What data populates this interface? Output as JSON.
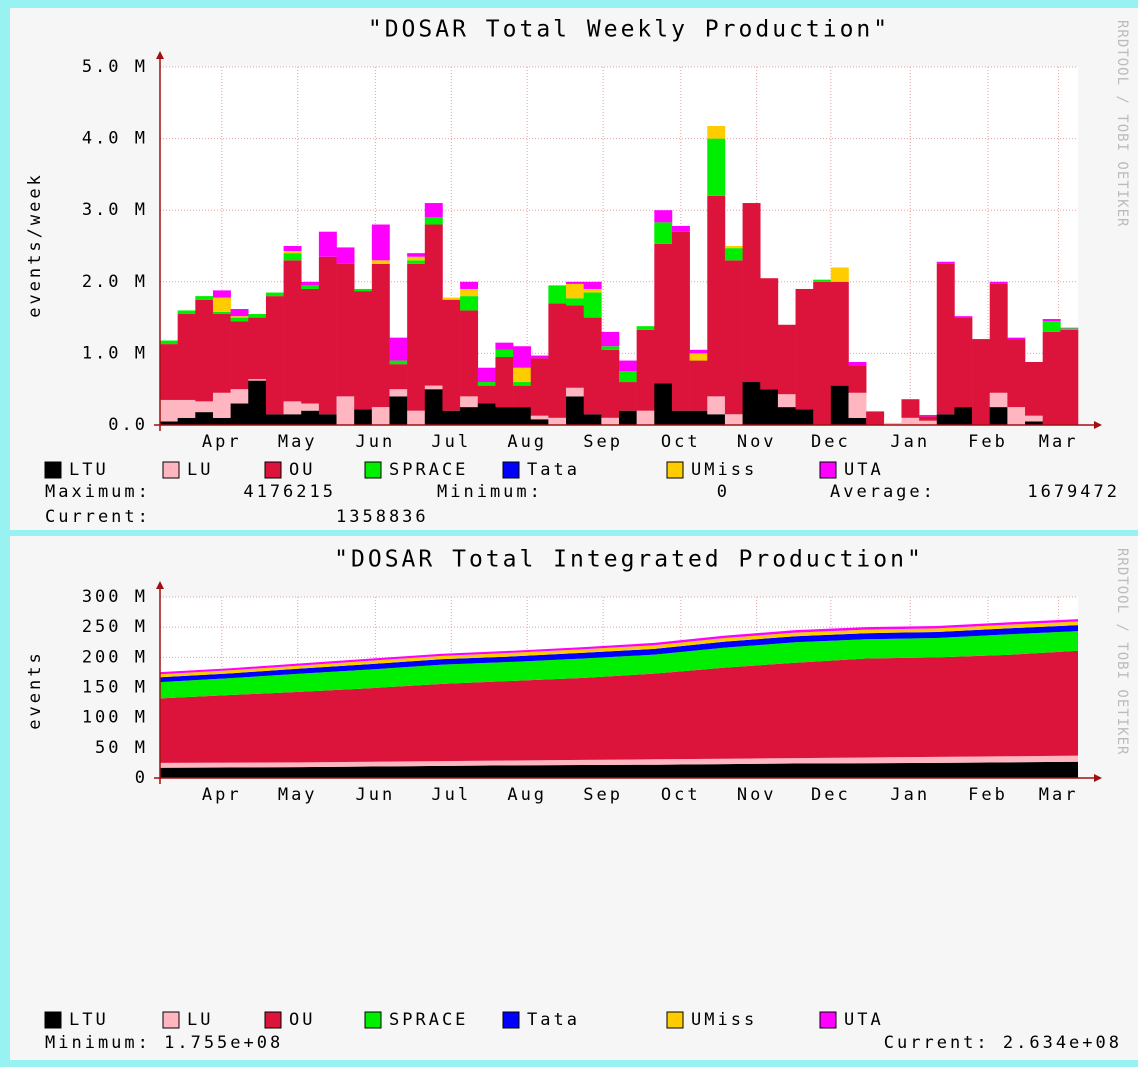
{
  "watermark": "RRDTOOL / TOBI OETIKER",
  "chart_data": [
    {
      "type": "bar",
      "stacked": true,
      "title": "\"DOSAR Total Weekly Production\"",
      "y_label": "events/week",
      "categories": [
        null,
        null,
        null,
        null,
        null,
        null,
        null,
        null,
        null,
        null,
        null,
        null,
        null,
        null,
        null,
        null,
        null,
        null,
        null,
        null,
        null,
        null,
        null,
        null,
        null,
        null,
        null,
        null,
        null,
        null,
        null,
        null,
        null,
        null,
        null,
        null,
        null,
        null,
        null,
        null,
        null,
        null,
        null,
        null,
        null,
        null,
        null,
        null,
        null,
        null,
        null,
        null
      ],
      "xlim": [
        0,
        52
      ],
      "xticks": [
        {
          "value": 3.5,
          "label": "Apr"
        },
        {
          "value": 7.8,
          "label": "May"
        },
        {
          "value": 12.2,
          "label": "Jun"
        },
        {
          "value": 16.5,
          "label": "Jul"
        },
        {
          "value": 20.8,
          "label": "Aug"
        },
        {
          "value": 25.1,
          "label": "Sep"
        },
        {
          "value": 29.5,
          "label": "Oct"
        },
        {
          "value": 33.8,
          "label": "Nov"
        },
        {
          "value": 38.0,
          "label": "Dec"
        },
        {
          "value": 42.5,
          "label": "Jan"
        },
        {
          "value": 46.9,
          "label": "Feb"
        },
        {
          "value": 50.9,
          "label": "Mar"
        }
      ],
      "ylim": [
        0,
        5000000
      ],
      "yticks": [
        {
          "value": 0,
          "label": "0.0"
        },
        {
          "value": 1000000,
          "label": "1.0 M"
        },
        {
          "value": 2000000,
          "label": "2.0 M"
        },
        {
          "value": 3000000,
          "label": "3.0 M"
        },
        {
          "value": 4000000,
          "label": "4.0 M"
        },
        {
          "value": 5000000,
          "label": "5.0 M"
        }
      ],
      "grid": true,
      "series": [
        {
          "name": "LTU",
          "color": "#000000",
          "values": [
            50000.0,
            100000.0,
            180000.0,
            100000.0,
            300000.0,
            620000.0,
            150000.0,
            150000.0,
            200000.0,
            150000.0,
            0,
            220000.0,
            0,
            400000.0,
            0,
            500000.0,
            200000.0,
            250000.0,
            300000.0,
            250000.0,
            250000.0,
            80000.0,
            0,
            400000.0,
            150000.0,
            0,
            200000.0,
            0,
            580000.0,
            200000.0,
            200000.0,
            150000.0,
            0,
            600000.0,
            500000.0,
            250000.0,
            220000.0,
            0,
            550000.0,
            100000.0,
            0,
            0,
            0,
            0,
            150000.0,
            250000.0,
            0,
            250000.0,
            0,
            50000.0,
            0,
            0
          ]
        },
        {
          "name": "LU",
          "color": "#ffb6c1",
          "values": [
            300000.0,
            250000.0,
            150000.0,
            350000.0,
            200000.0,
            20000.0,
            0,
            180000.0,
            100000.0,
            0,
            400000.0,
            0,
            250000.0,
            100000.0,
            200000.0,
            50000.0,
            0,
            150000.0,
            0,
            0,
            0,
            50000.0,
            100000.0,
            120000.0,
            0,
            100000.0,
            0,
            200000.0,
            0,
            0,
            0,
            250000.0,
            150000.0,
            0,
            0,
            180000.0,
            0,
            0,
            0,
            350000.0,
            0,
            30000.0,
            100000.0,
            60000.0,
            0,
            0,
            0,
            200000.0,
            250000.0,
            80000.0,
            0,
            0
          ]
        },
        {
          "name": "OU",
          "color": "#dc143c",
          "values": [
            780000.0,
            1200000.0,
            1420000.0,
            1100000.0,
            950000.0,
            860000.0,
            1650000.0,
            1970000.0,
            1600000.0,
            2200000.0,
            1850000.0,
            1650000.0,
            2000000.0,
            350000.0,
            2050000.0,
            2250000.0,
            1550000.0,
            1200000.0,
            250000.0,
            700000.0,
            300000.0,
            800000.0,
            1600000.0,
            1150000.0,
            1350000.0,
            950000.0,
            400000.0,
            1130000.0,
            1950000.0,
            2500000.0,
            700000.0,
            2800000.0,
            2150000.0,
            2500000.0,
            1550000.0,
            970000.0,
            1680000.0,
            2000000.0,
            1450000.0,
            380000.0,
            190000.0,
            0,
            260000.0,
            60000.0,
            2100000.0,
            1250000.0,
            1200000.0,
            1520000.0,
            950000.0,
            750000.0,
            1300000.0,
            1330000.0
          ]
        },
        {
          "name": "SPRACE",
          "color": "#00ee00",
          "values": [
            50000.0,
            50000.0,
            50000.0,
            30000.0,
            50000.0,
            50000.0,
            50000.0,
            100000.0,
            50000.0,
            0,
            0,
            30000.0,
            0,
            50000.0,
            50000.0,
            100000.0,
            0,
            200000.0,
            50000.0,
            100000.0,
            50000.0,
            0,
            250000.0,
            100000.0,
            350000.0,
            50000.0,
            150000.0,
            50000.0,
            300000.0,
            0,
            0,
            800000.0,
            170000.0,
            0,
            0,
            0,
            0,
            30000.0,
            0,
            0,
            0,
            0,
            0,
            0,
            0,
            0,
            0,
            0,
            0,
            0,
            150000.0,
            20000.0
          ]
        },
        {
          "name": "Tata",
          "color": "#0000ff",
          "values": [
            0,
            0,
            0,
            0,
            0,
            0,
            0,
            0,
            0,
            0,
            0,
            0,
            0,
            0,
            0,
            0,
            0,
            0,
            0,
            0,
            0,
            0,
            0,
            0,
            0,
            0,
            0,
            0,
            0,
            0,
            0,
            0,
            0,
            0,
            0,
            0,
            0,
            0,
            0,
            0,
            0,
            0,
            0,
            0,
            0,
            0,
            0,
            0,
            0,
            0,
            0,
            0
          ]
        },
        {
          "name": "UMiss",
          "color": "#ffcc00",
          "values": [
            0,
            0,
            0,
            200000.0,
            20000.0,
            0,
            0,
            30000.0,
            0,
            0,
            0,
            0,
            50000.0,
            0,
            50000.0,
            0,
            30000.0,
            100000.0,
            0,
            0,
            200000.0,
            0,
            0,
            200000.0,
            50000.0,
            0,
            0,
            0,
            0,
            0,
            100000.0,
            176215,
            30000.0,
            0,
            0,
            0,
            0,
            0,
            200000.0,
            0,
            0,
            0,
            0,
            0,
            0,
            0,
            0,
            0,
            0,
            0,
            0,
            0
          ]
        },
        {
          "name": "UTA",
          "color": "#ff00ff",
          "values": [
            0,
            0,
            0,
            100000.0,
            100000.0,
            0,
            0,
            70000.0,
            50000.0,
            350000.0,
            230000.0,
            0,
            500000.0,
            320000.0,
            50000.0,
            200000.0,
            0,
            100000.0,
            200000.0,
            100000.0,
            300000.0,
            40000.0,
            0,
            30000.0,
            100000.0,
            200000.0,
            150000.0,
            0,
            170000.0,
            80000.0,
            50000.0,
            0,
            0,
            0,
            0,
            0,
            0,
            0,
            0,
            50000.0,
            0,
            0,
            0,
            20000.0,
            30000.0,
            20000.0,
            0,
            30000.0,
            20000.0,
            0,
            30000.0,
            8836
          ]
        }
      ],
      "stats": [
        "Maximum:",
        "4176215",
        "Minimum:",
        "0",
        "Average:",
        "1679472",
        "Current:",
        "1358836"
      ]
    },
    {
      "type": "area",
      "stacked": true,
      "title": "\"DOSAR Total Integrated Production\"",
      "y_label": "events",
      "x": [
        0,
        4,
        8,
        12,
        16,
        20,
        24,
        28,
        32,
        36,
        40,
        44,
        48,
        52
      ],
      "xlim": [
        0,
        52
      ],
      "xticks": [
        {
          "value": 3.5,
          "label": "Apr"
        },
        {
          "value": 7.8,
          "label": "May"
        },
        {
          "value": 12.2,
          "label": "Jun"
        },
        {
          "value": 16.5,
          "label": "Jul"
        },
        {
          "value": 20.8,
          "label": "Aug"
        },
        {
          "value": 25.1,
          "label": "Sep"
        },
        {
          "value": 29.5,
          "label": "Oct"
        },
        {
          "value": 33.8,
          "label": "Nov"
        },
        {
          "value": 38.0,
          "label": "Dec"
        },
        {
          "value": 42.5,
          "label": "Jan"
        },
        {
          "value": 46.9,
          "label": "Feb"
        },
        {
          "value": 50.9,
          "label": "Mar"
        }
      ],
      "ylim": [
        0,
        300000000
      ],
      "yticks": [
        0,
        {
          "value": 50000000,
          "label": "50 M"
        },
        {
          "value": 100000000,
          "label": "100 M"
        },
        {
          "value": 150000000,
          "label": "150 M"
        },
        {
          "value": 200000000,
          "label": "200 M"
        },
        {
          "value": 250000000,
          "label": "250 M"
        },
        {
          "value": 300000000,
          "label": "300 M"
        }
      ],
      "grid": true,
      "series": [
        {
          "name": "LTU",
          "color": "#000000",
          "values": [
            17000000.0,
            17500000.0,
            18000000.0,
            19000000.0,
            20000000.0,
            21000000.0,
            21500000.0,
            22000000.0,
            23000000.0,
            24000000.0,
            24500000.0,
            25000000.0,
            26000000.0,
            27000000.0
          ]
        },
        {
          "name": "LU",
          "color": "#ffb6c1",
          "values": [
            8000000.0,
            8000000.0,
            8000000.0,
            8000000.0,
            8000000.0,
            8000000.0,
            8500000.0,
            9000000.0,
            9000000.0,
            9000000.0,
            9500000.0,
            10000000.0,
            10000000.0,
            10000000.0
          ]
        },
        {
          "name": "OU",
          "color": "#dc143c",
          "values": [
            107000000.0,
            112000000.0,
            117000000.0,
            122000000.0,
            128000000.0,
            132000000.0,
            136000000.0,
            142000000.0,
            151000000.0,
            158000000.0,
            164000000.0,
            165000000.0,
            168000000.0,
            174000000.0
          ]
        },
        {
          "name": "SPRACE",
          "color": "#00ee00",
          "values": [
            27000000.0,
            28000000.0,
            30000000.0,
            31000000.0,
            32000000.0,
            31500000.0,
            32000000.0,
            31500000.0,
            33000000.0,
            34000000.0,
            32000000.0,
            32000000.0,
            34000000.0,
            32400000.0
          ]
        },
        {
          "name": "Tata",
          "color": "#0000ff",
          "values": [
            8000000.0,
            8000000.0,
            8500000.0,
            9000000.0,
            9000000.0,
            9000000.0,
            9500000.0,
            9500000.0,
            10000000.0,
            10000000.0,
            10000000.0,
            10000000.0,
            10000000.0,
            10000000.0
          ]
        },
        {
          "name": "UMiss",
          "color": "#ffcc00",
          "values": [
            5000000.0,
            5000000.0,
            5000000.0,
            5500000.0,
            5500000.0,
            6000000.0,
            6000000.0,
            6000000.0,
            6000000.0,
            6000000.0,
            6000000.0,
            6000000.0,
            6000000.0,
            6000000.0
          ]
        },
        {
          "name": "UTA",
          "color": "#ff00ff",
          "values": [
            3500000.0,
            3500000.0,
            3500000.0,
            3500000.0,
            3500000.0,
            3500000.0,
            3500000.0,
            4000000.0,
            4000000.0,
            4000000.0,
            4000000.0,
            4000000.0,
            4000000.0,
            4000000.0
          ]
        }
      ],
      "stats": [
        "Minimum: 1.755e+08",
        "Current: 2.634e+08"
      ]
    }
  ]
}
